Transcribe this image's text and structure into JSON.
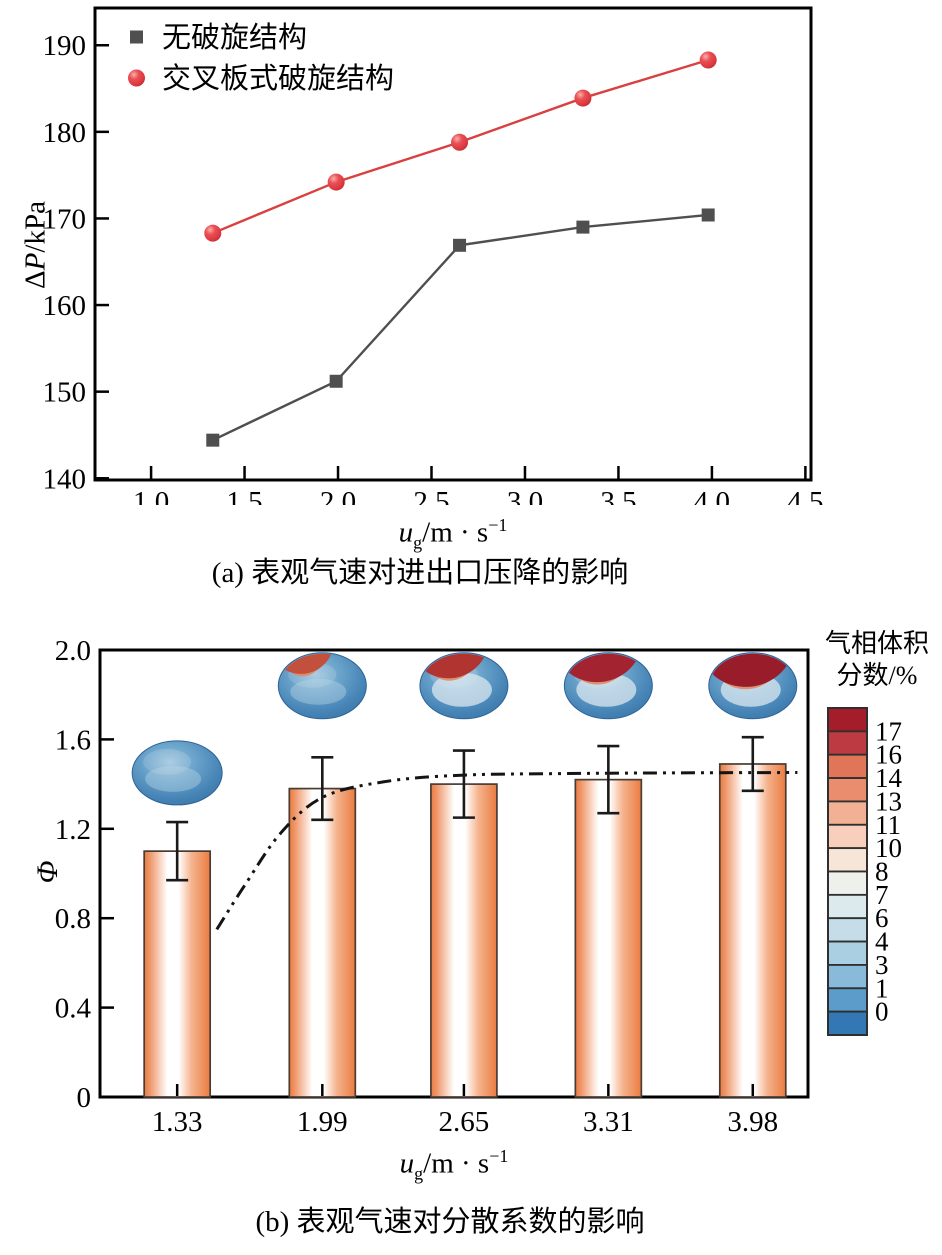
{
  "figure": {
    "caption_a": "(a) 表观气速对进出口压降的影响",
    "caption_b": "(b) 表观气速对分散系数的影响"
  },
  "chart_data": [
    {
      "id": "pressure-drop-vs-gas-velocity",
      "type": "line",
      "title": "",
      "xlabel_parts": {
        "var": "u",
        "sub": "g",
        "mid": "/m · s",
        "sup": "−1"
      },
      "ylabel_parts": {
        "pre": "Δ",
        "it": "P",
        "post": "/kPa"
      },
      "xlim": [
        0.7,
        4.53
      ],
      "ylim": [
        139.8,
        194.3
      ],
      "xticks": [
        "1.0",
        "1.5",
        "2.0",
        "2.5",
        "3.0",
        "3.5",
        "4.0",
        "4.5"
      ],
      "yticks": [
        "140",
        "150",
        "160",
        "170",
        "180",
        "190"
      ],
      "grid": false,
      "legend_position": "top-left",
      "x": [
        1.33,
        1.99,
        2.65,
        3.31,
        3.98
      ],
      "series": [
        {
          "name": "无破旋结构",
          "marker": "square",
          "color": "#4f4f4f",
          "values": [
            144.4,
            151.2,
            166.9,
            169.0,
            170.4
          ]
        },
        {
          "name": "交叉板式破旋结构",
          "marker": "circle",
          "color": "#d9403f",
          "values": [
            168.3,
            174.2,
            178.8,
            183.9,
            188.3
          ]
        }
      ]
    },
    {
      "id": "dispersion-coefficient-vs-gas-velocity",
      "type": "bar",
      "title": "",
      "xlabel_parts": {
        "var": "u",
        "sub": "g",
        "mid": "/m · s",
        "sup": "−1"
      },
      "ylabel": "Φ",
      "ylim": [
        0,
        2.0
      ],
      "yticks": [
        "0",
        "0.4",
        "0.8",
        "1.2",
        "1.6",
        "2.0"
      ],
      "categories": [
        "1.33",
        "1.99",
        "2.65",
        "3.31",
        "3.98"
      ],
      "values": [
        1.1,
        1.38,
        1.4,
        1.42,
        1.49
      ],
      "errors": [
        0.13,
        0.14,
        0.15,
        0.15,
        0.12
      ],
      "bar_style": {
        "edge_color": "#ea7c41",
        "center_color": "#ffffff",
        "border_color": "#4a3b33"
      },
      "trend_line": {
        "style": "dash-dot-dot",
        "color": "#141414",
        "points_xfrac_phi": [
          [
            0.165,
            0.75
          ],
          [
            0.205,
            0.95
          ],
          [
            0.255,
            1.18
          ],
          [
            0.314,
            1.34
          ],
          [
            0.4,
            1.41
          ],
          [
            0.51,
            1.44
          ],
          [
            0.65,
            1.447
          ],
          [
            0.8,
            1.45
          ],
          [
            0.985,
            1.452
          ]
        ]
      },
      "inset_contours": [
        {
          "phi": 1.45,
          "red_cap_level": 0
        },
        {
          "phi": 1.84,
          "red_cap_level": 1
        },
        {
          "phi": 1.84,
          "red_cap_level": 2
        },
        {
          "phi": 1.84,
          "red_cap_level": 3
        },
        {
          "phi": 1.84,
          "red_cap_level": 4
        }
      ],
      "colorbar": {
        "title_lines": [
          "气相体积",
          "分数/%"
        ],
        "labels": [
          "17",
          "16",
          "14",
          "13",
          "11",
          "10",
          "8",
          "7",
          "6",
          "4",
          "3",
          "1",
          "0"
        ],
        "segment_colors": [
          "#a31d2a",
          "#bd3a43",
          "#e1755a",
          "#ea8d6f",
          "#f2b095",
          "#f7cfba",
          "#f7e5d8",
          "#eef0ec",
          "#dceaee",
          "#c5dde9",
          "#aacfe2",
          "#8abada",
          "#5c9cca",
          "#3377b4"
        ]
      }
    }
  ]
}
